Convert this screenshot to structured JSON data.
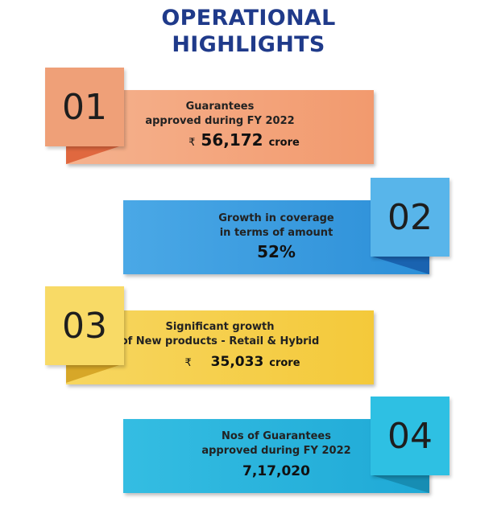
{
  "header": {
    "line1": "OPERATIONAL",
    "line2": "HIGHLIGHTS"
  },
  "cards": [
    {
      "number": "01",
      "line1": "Guarantees",
      "line2": "approved during FY 2022",
      "currency": "₹",
      "value": "56,172",
      "unit": "crore",
      "colors": {
        "band": "#f2a27a",
        "badge": "#ef9e74",
        "fold": "#e0683f"
      }
    },
    {
      "number": "02",
      "line1": "Growth in  coverage",
      "line2": "in terms of amount",
      "currency": "",
      "value": "52%",
      "unit": "",
      "colors": {
        "band": "#3a9fe0",
        "badge": "#56b4ea",
        "fold": "#1a63b0"
      }
    },
    {
      "number": "03",
      "line1": "Significant growth",
      "line2": "of New products - Retail & Hybrid",
      "currency": "₹",
      "value": "35,033",
      "unit": "crore",
      "colors": {
        "band": "#f6cf45",
        "badge": "#f8da66",
        "fold": "#d7a728"
      }
    },
    {
      "number": "04",
      "line1": "Nos of Guarantees",
      "line2": "approved during FY 2022",
      "currency": "",
      "value": "7,17,020",
      "unit": "",
      "colors": {
        "band": "#29b5dd",
        "badge": "#2ec0e3",
        "fold": "#178db3"
      }
    }
  ]
}
